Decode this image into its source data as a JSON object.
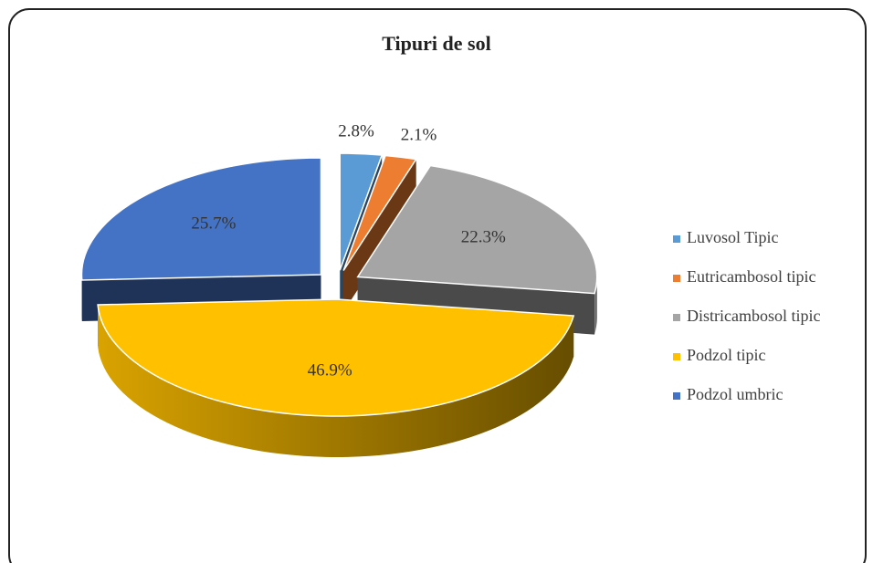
{
  "chart_data": {
    "type": "pie",
    "title": "Tipuri de sol",
    "categories": [
      "Luvosol Tipic",
      "Eutricambosol tipic",
      "Districambosol tipic",
      "Podzol tipic",
      "Podzol umbric"
    ],
    "values": [
      2.8,
      2.1,
      22.3,
      46.9,
      25.7
    ],
    "value_labels": [
      "2.8%",
      "2.1%",
      "22.3%",
      "46.9%",
      "25.7%"
    ],
    "colors": [
      "#5b9bd5",
      "#ed7d31",
      "#a5a5a5",
      "#ffc000",
      "#4472c4"
    ],
    "legend": "right"
  }
}
